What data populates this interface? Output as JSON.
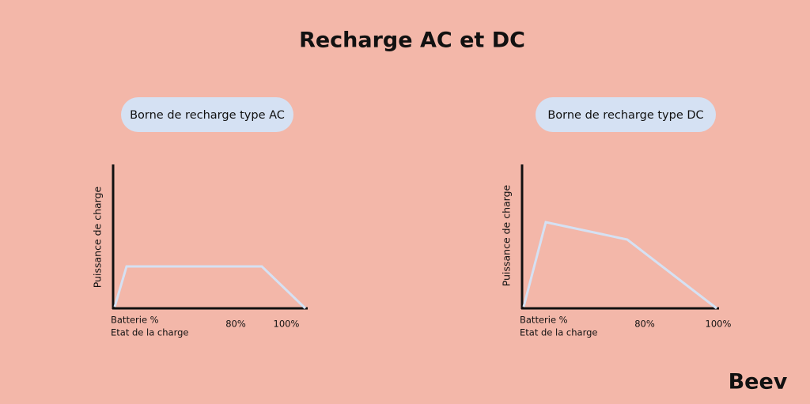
{
  "title": "Recharge AC et DC",
  "panels": [
    {
      "badge": "Borne de recharge type AC",
      "y_axis_label": "Puissance de charge",
      "x_axis_label": [
        "Batterie %",
        "Etat de la charge"
      ],
      "x_ticks": [
        "80%",
        "100%"
      ]
    },
    {
      "badge": "Borne de recharge type DC",
      "y_axis_label": "Puissance de charge",
      "x_axis_label": [
        "Batterie %",
        "Etat de la charge"
      ],
      "x_ticks": [
        "80%",
        "100%"
      ]
    }
  ],
  "logo": "Beev"
}
